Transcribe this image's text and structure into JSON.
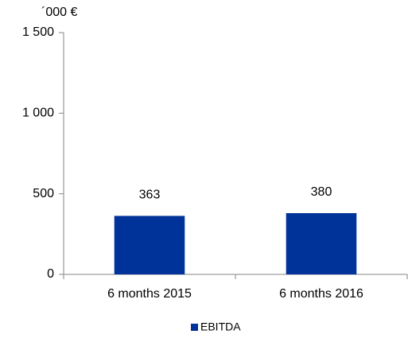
{
  "chart_data": {
    "type": "bar",
    "y_axis_label": "´000 €",
    "categories": [
      "6 months 2015",
      "6 months 2016"
    ],
    "series": [
      {
        "name": "EBITDA",
        "color": "#003399",
        "values": [
          363,
          380
        ]
      }
    ],
    "ylim": [
      0,
      1500
    ],
    "yticks": [
      0,
      500,
      {
        "value": 1000,
        "label": "1 000"
      },
      {
        "value": 1500,
        "label": "1 500"
      }
    ],
    "grid": false,
    "legend": "bottom"
  }
}
